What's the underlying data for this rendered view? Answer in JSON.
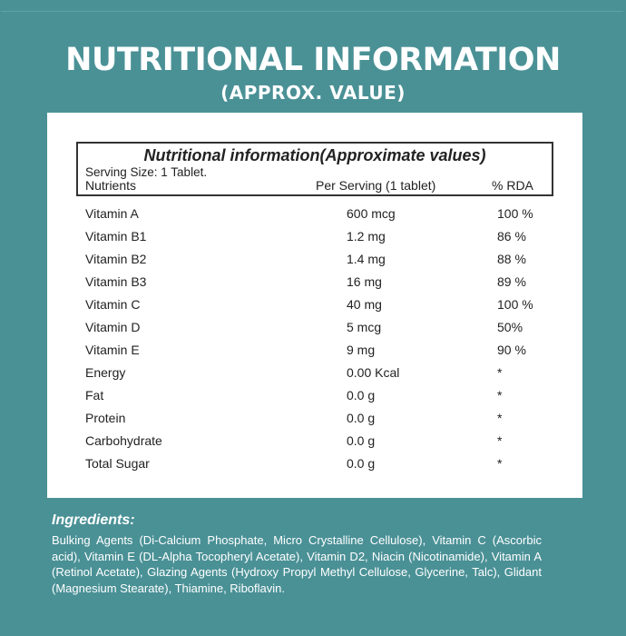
{
  "header": {
    "title": "NUTRITIONAL INFORMATION",
    "subtitle": "(APPROX. VALUE)"
  },
  "table": {
    "title": "Nutritional information(Approximate values)",
    "serving_size": "Serving Size: 1 Tablet.",
    "columns": [
      "Nutrients",
      "Per Serving (1 tablet)",
      "% RDA"
    ],
    "rows": [
      [
        "Vitamin A",
        "600 mcg",
        "100 %"
      ],
      [
        "Vitamin B1",
        "1.2 mg",
        "86 %"
      ],
      [
        "Vitamin B2",
        "1.4 mg",
        "88 %"
      ],
      [
        "Vitamin B3",
        "16 mg",
        "89 %"
      ],
      [
        "Vitamin C",
        "40 mg",
        "100 %"
      ],
      [
        "Vitamin D",
        "5 mcg",
        "50%"
      ],
      [
        "Vitamin E",
        "9 mg",
        "90 %"
      ],
      [
        "Energy",
        "0.00 Kcal",
        "*"
      ],
      [
        "Fat",
        "0.0 g",
        "*"
      ],
      [
        "Protein",
        "0.0 g",
        "*"
      ],
      [
        "Carbohydrate",
        "0.0 g",
        "*"
      ],
      [
        "Total Sugar",
        "0.0 g",
        "*"
      ]
    ]
  },
  "ingredients": {
    "title": "Ingredients:",
    "text": "Bulking Agents (Di-Calcium Phosphate, Micro Crystalline Cellulose), Vitamin C (Ascorbic acid), Vitamin E (DL-Alpha Tocopheryl Acetate), Vitamin D2, Niacin (Nicotinamide), Vitamin A (Retinol Acetate), Glazing Agents (Hydroxy Propyl Methyl Cellulose, Glycerine, Talc),  Glidant (Magnesium Stearate), Thiamine, Riboflavin."
  },
  "colors": {
    "background": "#4a9196",
    "panel": "#ffffff",
    "text": "#222222"
  }
}
